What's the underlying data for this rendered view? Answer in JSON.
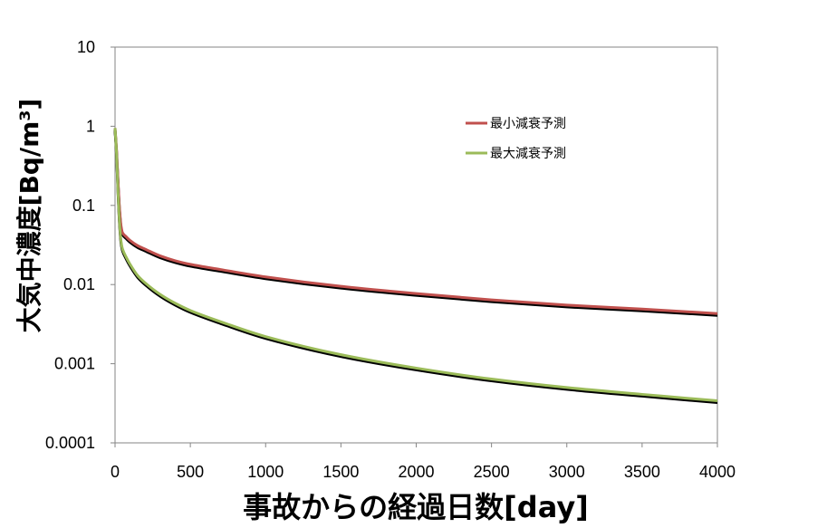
{
  "chart_data": {
    "type": "line",
    "title": "",
    "xlabel": "事故からの経過日数[day]",
    "ylabel": "大気中濃度[Bq/m³]",
    "x_scale": "linear",
    "y_scale": "log",
    "xlim": [
      0,
      4000
    ],
    "ylim": [
      0.0001,
      10
    ],
    "x_ticks": [
      "0",
      "500",
      "1000",
      "1500",
      "2000",
      "2500",
      "3000",
      "3500",
      "4000"
    ],
    "y_ticks": [
      "10",
      "1",
      "0.1",
      "0.01",
      "0.001",
      "0.0001"
    ],
    "grid": false,
    "legend_position": "top-right",
    "series": [
      {
        "name": "最小減衰予測",
        "color": "#c0504d",
        "x": [
          0,
          10,
          20,
          30,
          40,
          50,
          75,
          100,
          150,
          200,
          300,
          400,
          500,
          700,
          1000,
          1500,
          2000,
          2500,
          3000,
          3500,
          4000
        ],
        "y": [
          0.95,
          0.5,
          0.2,
          0.09,
          0.055,
          0.045,
          0.04,
          0.036,
          0.031,
          0.028,
          0.023,
          0.02,
          0.018,
          0.0155,
          0.0125,
          0.0095,
          0.0077,
          0.0064,
          0.0055,
          0.0049,
          0.0043
        ]
      },
      {
        "name": "最大減衰予測",
        "color": "#9bbb59",
        "x": [
          0,
          10,
          20,
          30,
          40,
          50,
          75,
          100,
          150,
          200,
          300,
          400,
          500,
          700,
          1000,
          1500,
          2000,
          2500,
          3000,
          3500,
          4000
        ],
        "y": [
          0.95,
          0.45,
          0.15,
          0.06,
          0.035,
          0.028,
          0.022,
          0.018,
          0.013,
          0.0105,
          0.0075,
          0.0058,
          0.0047,
          0.0034,
          0.0022,
          0.0013,
          0.00088,
          0.00064,
          0.0005,
          0.00041,
          0.00034
        ]
      }
    ]
  }
}
